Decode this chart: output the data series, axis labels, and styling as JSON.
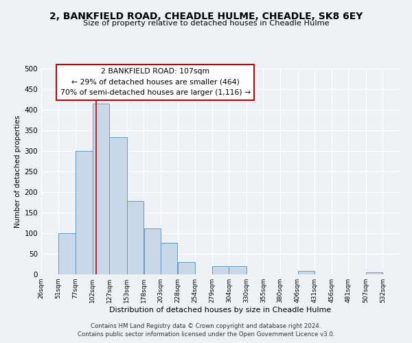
{
  "title": "2, BANKFIELD ROAD, CHEADLE HULME, CHEADLE, SK8 6EY",
  "subtitle": "Size of property relative to detached houses in Cheadle Hulme",
  "xlabel": "Distribution of detached houses by size in Cheadle Hulme",
  "ylabel": "Number of detached properties",
  "bar_left_edges": [
    26,
    51,
    77,
    102,
    127,
    153,
    178,
    203,
    228,
    254,
    279,
    304,
    330,
    355,
    380,
    406,
    431,
    456,
    481,
    507
  ],
  "bar_widths": [
    25,
    26,
    25,
    25,
    26,
    25,
    25,
    25,
    26,
    25,
    25,
    26,
    25,
    25,
    26,
    25,
    25,
    25,
    26,
    25
  ],
  "bar_heights": [
    0,
    100,
    300,
    415,
    333,
    178,
    111,
    77,
    30,
    0,
    20,
    20,
    0,
    0,
    0,
    8,
    0,
    0,
    0,
    5
  ],
  "tick_labels": [
    "26sqm",
    "51sqm",
    "77sqm",
    "102sqm",
    "127sqm",
    "153sqm",
    "178sqm",
    "203sqm",
    "228sqm",
    "254sqm",
    "279sqm",
    "304sqm",
    "330sqm",
    "355sqm",
    "380sqm",
    "406sqm",
    "431sqm",
    "456sqm",
    "481sqm",
    "507sqm",
    "532sqm"
  ],
  "tick_positions": [
    26,
    51,
    77,
    102,
    127,
    153,
    178,
    203,
    228,
    254,
    279,
    304,
    330,
    355,
    380,
    406,
    431,
    456,
    481,
    507,
    532
  ],
  "bar_color": "#c8d8e8",
  "bar_edge_color": "#6699bb",
  "marker_x": 107,
  "marker_line_color": "#cc0000",
  "annotation_box_color": "#ffffff",
  "annotation_box_edge": "#cc0000",
  "annotation_line1": "2 BANKFIELD ROAD: 107sqm",
  "annotation_line2": "← 29% of detached houses are smaller (464)",
  "annotation_line3": "70% of semi-detached houses are larger (1,116) →",
  "footer_line1": "Contains HM Land Registry data © Crown copyright and database right 2024.",
  "footer_line2": "Contains public sector information licensed under the Open Government Licence v3.0.",
  "ylim": [
    0,
    500
  ],
  "xlim": [
    26,
    557
  ],
  "background_color": "#eef2f7",
  "yticks": [
    0,
    50,
    100,
    150,
    200,
    250,
    300,
    350,
    400,
    450,
    500
  ]
}
